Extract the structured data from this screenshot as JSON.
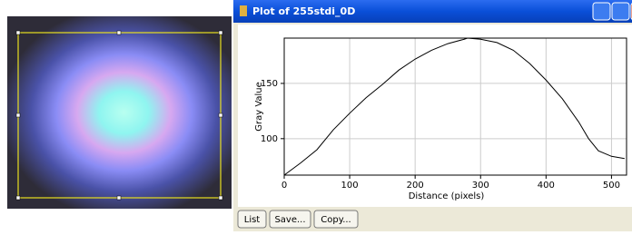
{
  "window": {
    "title": "Plot of 255stdi_0D",
    "buttons": [
      "List",
      "Save...",
      "Copy..."
    ]
  },
  "chart_data": {
    "type": "line",
    "x_label": "Distance (pixels)",
    "y_label": "Gray Value",
    "x": [
      0,
      25,
      50,
      75,
      100,
      125,
      150,
      175,
      200,
      225,
      250,
      275,
      280,
      300,
      325,
      350,
      375,
      400,
      425,
      450,
      465,
      480,
      500,
      520
    ],
    "values": [
      67,
      78,
      90,
      108,
      123,
      137,
      149,
      162,
      172,
      180,
      186,
      190,
      191,
      190,
      187,
      180,
      168,
      153,
      136,
      115,
      100,
      89,
      84,
      82
    ],
    "color": "#000000",
    "xlim": [
      0,
      523
    ],
    "ylim": [
      67,
      191
    ],
    "xticks": [
      0,
      100,
      200,
      300,
      400,
      500
    ],
    "yticks": [
      100,
      150
    ],
    "grid": true,
    "grid_color": "#cccccc"
  }
}
